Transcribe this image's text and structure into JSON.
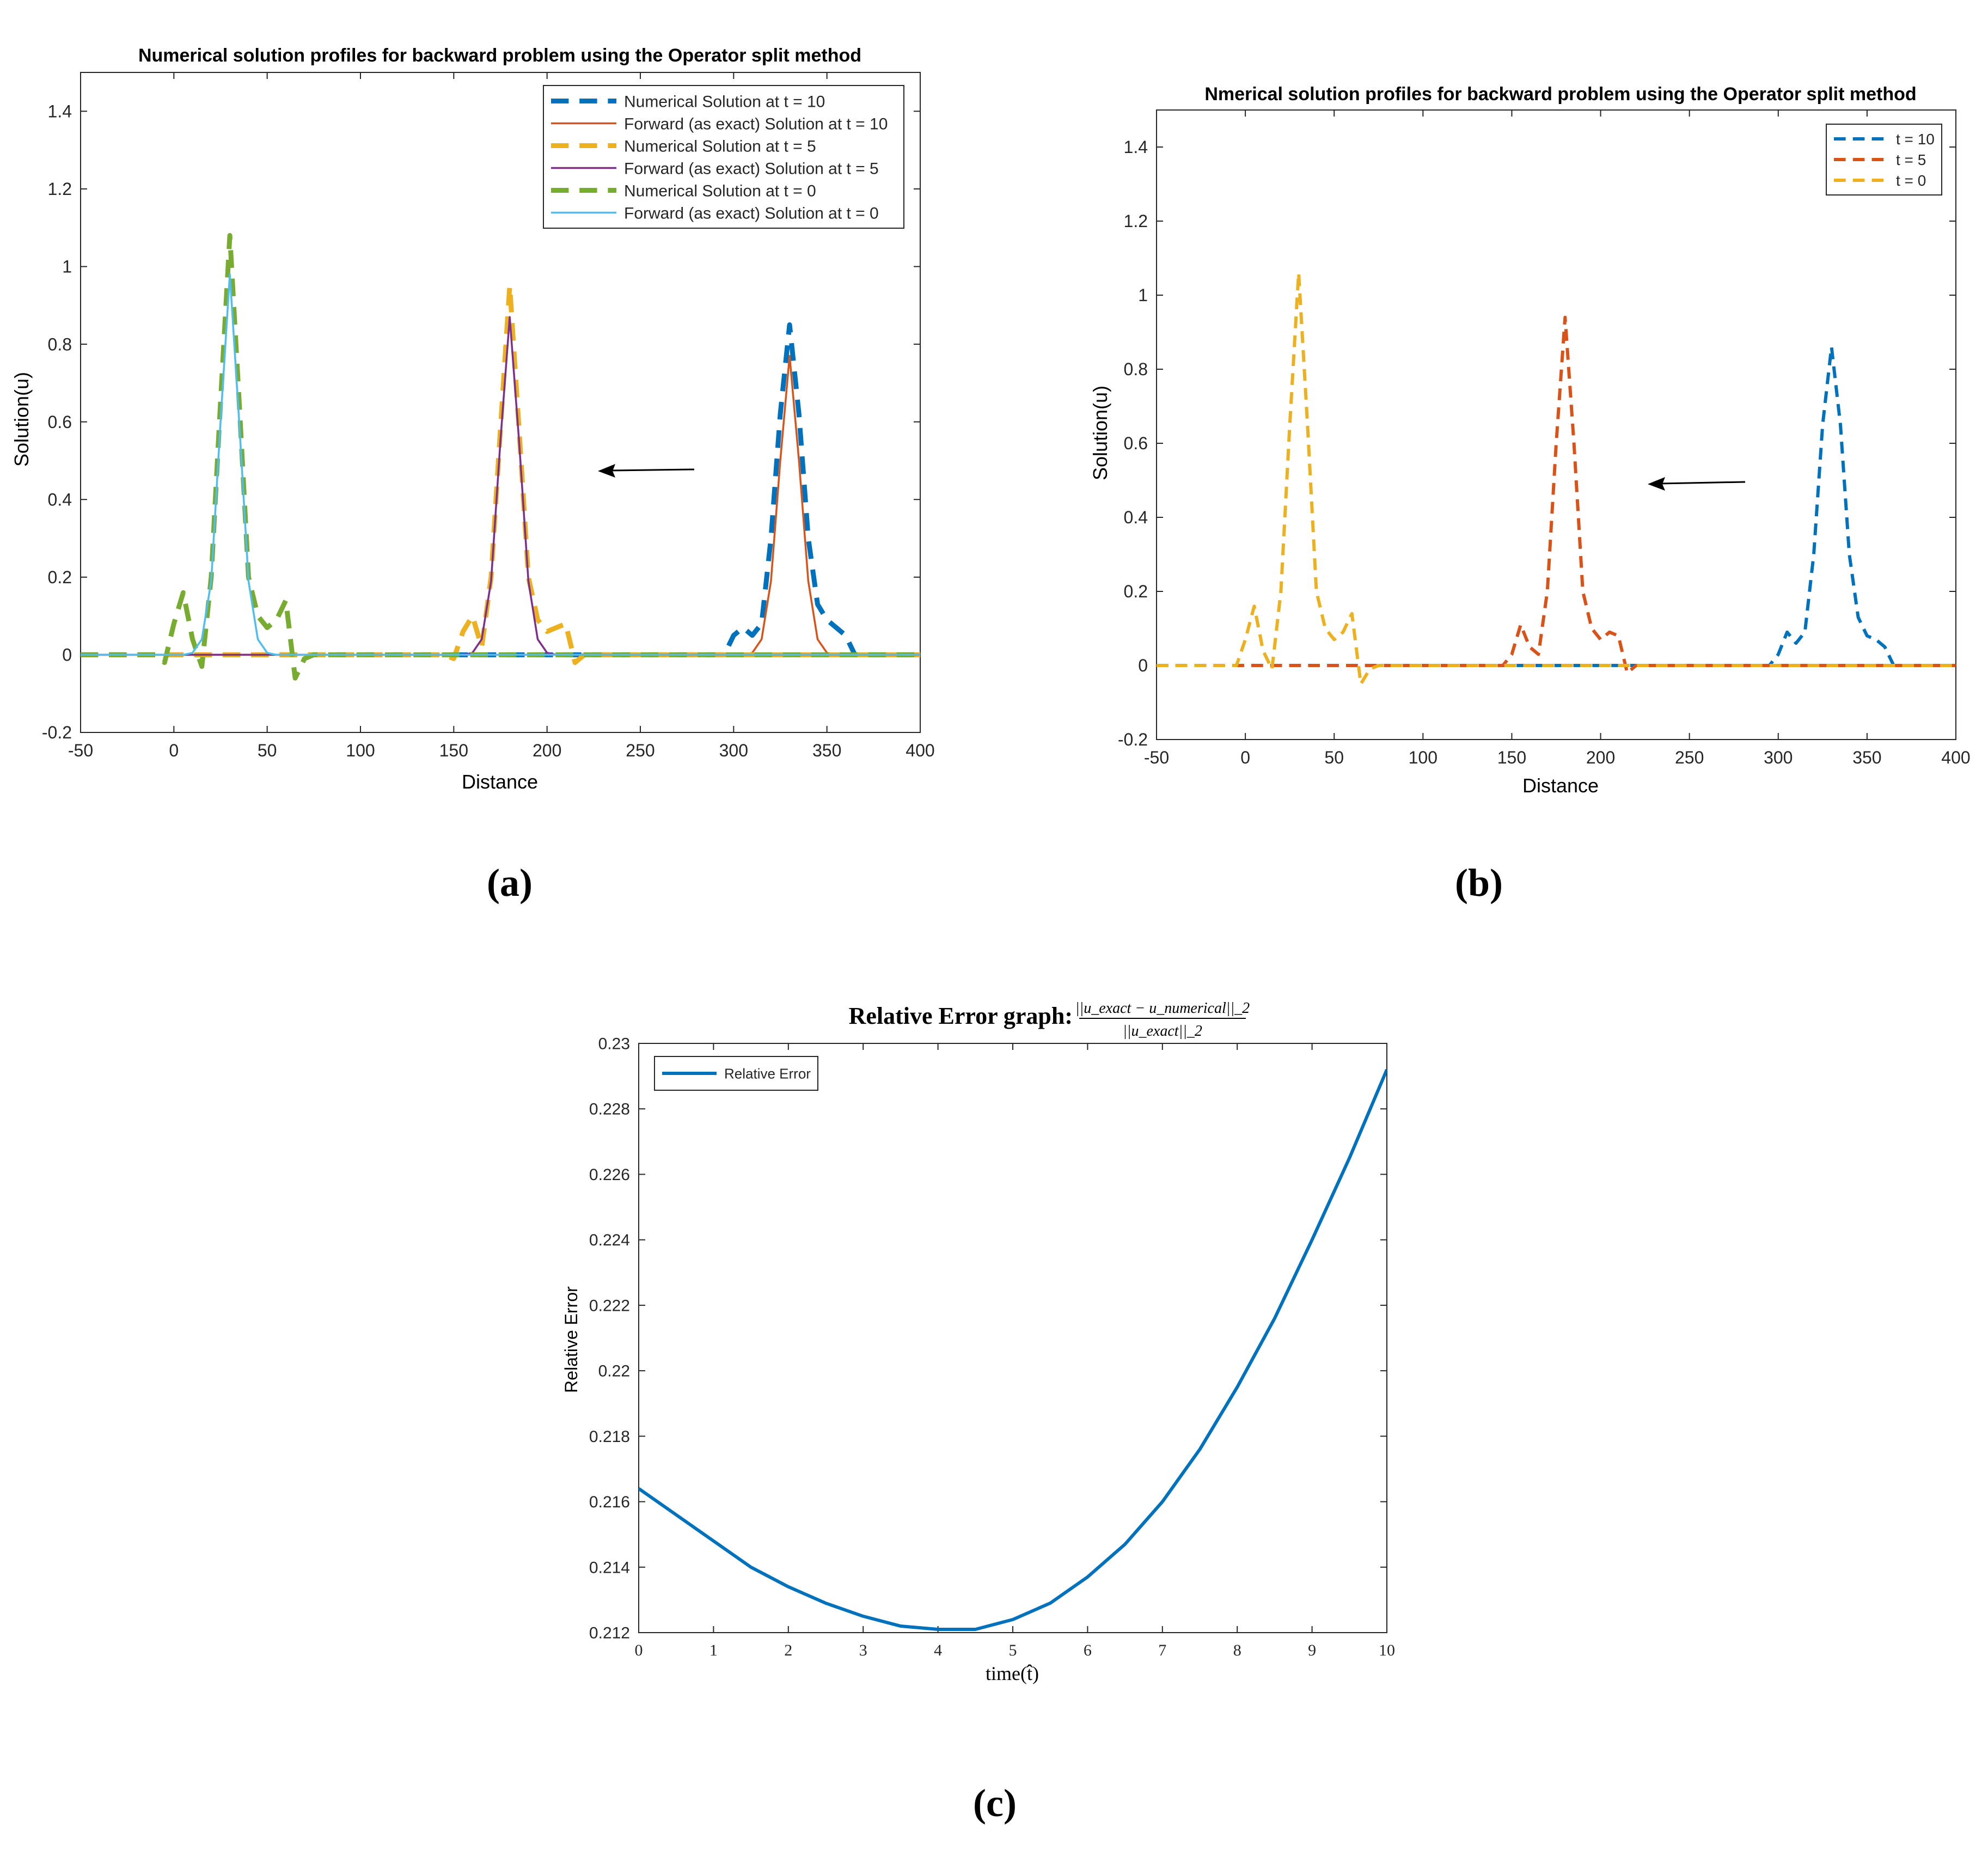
{
  "chart_data": [
    {
      "panel": "a",
      "type": "line",
      "title": "Numerical solution profiles for backward problem using the Operator split method",
      "xlabel": "Distance",
      "ylabel": "Solution(u)",
      "xlim": [
        -50,
        400
      ],
      "ylim": [
        -0.2,
        1.5
      ],
      "xticks": [
        -50,
        0,
        50,
        100,
        150,
        200,
        250,
        300,
        350,
        400
      ],
      "yticks": [
        -0.2,
        0,
        0.2,
        0.4,
        0.6,
        0.8,
        1,
        1.2,
        1.4
      ],
      "ytick_labels": [
        "-0.2",
        "0",
        "0.2",
        "0.4",
        "0.6",
        "0.8",
        "1",
        "1.2",
        "1.4"
      ],
      "xtick_labels": [
        "-50",
        "0",
        "50",
        "100",
        "150",
        "200",
        "250",
        "300",
        "350",
        "400"
      ],
      "legend_position": "top-right",
      "annotation": "left-pointing arrow",
      "series": [
        {
          "name": "Numerical Solution at t = 10",
          "color": "#0072BD",
          "style": "dashed",
          "width": "thick",
          "x": [
            -50,
            295,
            300,
            305,
            310,
            315,
            320,
            325,
            330,
            335,
            340,
            345,
            350,
            355,
            360,
            365,
            400
          ],
          "y": [
            0,
            0,
            0.05,
            0.07,
            0.05,
            0.08,
            0.3,
            0.62,
            0.85,
            0.62,
            0.3,
            0.13,
            0.09,
            0.07,
            0.05,
            0,
            0
          ]
        },
        {
          "name": "Forward (as exact) Solution at t = 10",
          "color": "#D95319",
          "style": "solid",
          "width": "thin",
          "x": [
            -50,
            305,
            310,
            315,
            320,
            325,
            330,
            335,
            340,
            345,
            350,
            355,
            400
          ],
          "y": [
            0,
            0,
            0.005,
            0.04,
            0.19,
            0.5,
            0.77,
            0.5,
            0.19,
            0.04,
            0.005,
            0,
            0
          ]
        },
        {
          "name": "Numerical Solution at t = 5",
          "color": "#EDB120",
          "style": "dashed",
          "width": "thick",
          "x": [
            -50,
            145,
            150,
            155,
            160,
            165,
            170,
            175,
            180,
            185,
            190,
            195,
            200,
            205,
            210,
            215,
            220,
            400
          ],
          "y": [
            0,
            0,
            -0.01,
            0.06,
            0.1,
            0.02,
            0.2,
            0.58,
            0.95,
            0.58,
            0.2,
            0.09,
            0.06,
            0.07,
            0.08,
            -0.02,
            0,
            0
          ]
        },
        {
          "name": "Forward (as exact) Solution at t = 5",
          "color": "#7E2F8E",
          "style": "solid",
          "width": "thin",
          "x": [
            -50,
            155,
            160,
            165,
            170,
            175,
            180,
            185,
            190,
            195,
            200,
            205,
            400
          ],
          "y": [
            0,
            0,
            0.005,
            0.04,
            0.19,
            0.55,
            0.87,
            0.55,
            0.19,
            0.04,
            0.005,
            0,
            0
          ]
        },
        {
          "name": "Numerical Solution at t = 0",
          "color": "#77AC30",
          "style": "dashed",
          "width": "thick",
          "x": [
            -50,
            -10,
            -5,
            0,
            5,
            10,
            15,
            20,
            25,
            30,
            35,
            40,
            45,
            50,
            55,
            60,
            65,
            70,
            75,
            400
          ],
          "y": [
            0,
            0,
            -0.02,
            0.08,
            0.16,
            0.04,
            -0.03,
            0.2,
            0.65,
            1.08,
            0.65,
            0.2,
            0.1,
            0.07,
            0.09,
            0.14,
            -0.06,
            -0.01,
            0,
            0
          ]
        },
        {
          "name": "Forward (as exact) Solution at t = 0",
          "color": "#4DBEEE",
          "style": "solid",
          "width": "thin",
          "x": [
            -50,
            5,
            10,
            15,
            20,
            25,
            30,
            35,
            40,
            45,
            50,
            55,
            400
          ],
          "y": [
            0,
            0,
            0.005,
            0.04,
            0.19,
            0.6,
            0.98,
            0.6,
            0.19,
            0.04,
            0.005,
            0,
            0
          ]
        }
      ]
    },
    {
      "panel": "b",
      "type": "line",
      "title": "Nmerical solution profiles for backward problem using the Operator split method",
      "xlabel": "Distance",
      "ylabel": "Solution(u)",
      "xlim": [
        -50,
        400
      ],
      "ylim": [
        -0.2,
        1.5
      ],
      "xticks": [
        -50,
        0,
        50,
        100,
        150,
        200,
        250,
        300,
        350,
        400
      ],
      "yticks": [
        -0.2,
        0,
        0.2,
        0.4,
        0.6,
        0.8,
        1,
        1.2,
        1.4
      ],
      "ytick_labels": [
        "-0.2",
        "0",
        "0.2",
        "0.4",
        "0.6",
        "0.8",
        "1",
        "1.2",
        "1.4"
      ],
      "xtick_labels": [
        "-50",
        "0",
        "50",
        "100",
        "150",
        "200",
        "250",
        "300",
        "350",
        "400"
      ],
      "legend_position": "top-right",
      "annotation": "left-pointing arrow",
      "series": [
        {
          "name": "t = 10",
          "color": "#0072BD",
          "style": "dashed",
          "width": "medium",
          "x": [
            -50,
            295,
            300,
            305,
            310,
            315,
            320,
            325,
            330,
            335,
            340,
            345,
            350,
            355,
            360,
            365,
            400
          ],
          "y": [
            0,
            0,
            0.03,
            0.09,
            0.06,
            0.09,
            0.3,
            0.65,
            0.86,
            0.65,
            0.3,
            0.13,
            0.08,
            0.07,
            0.05,
            0,
            0
          ]
        },
        {
          "name": "t = 5",
          "color": "#D95319",
          "style": "dashed",
          "width": "medium",
          "x": [
            -50,
            145,
            150,
            155,
            160,
            165,
            170,
            175,
            180,
            185,
            190,
            195,
            200,
            205,
            210,
            215,
            220,
            400
          ],
          "y": [
            0,
            0,
            0.03,
            0.11,
            0.05,
            0.03,
            0.2,
            0.6,
            0.94,
            0.6,
            0.2,
            0.1,
            0.07,
            0.09,
            0.08,
            -0.02,
            0,
            0
          ]
        },
        {
          "name": "t = 0",
          "color": "#EDB120",
          "style": "dashed",
          "width": "medium",
          "x": [
            -50,
            -5,
            0,
            5,
            10,
            15,
            20,
            25,
            30,
            35,
            40,
            45,
            50,
            55,
            60,
            65,
            70,
            75,
            400
          ],
          "y": [
            0,
            0,
            0.07,
            0.16,
            0.04,
            -0.01,
            0.2,
            0.65,
            1.06,
            0.65,
            0.2,
            0.1,
            0.07,
            0.09,
            0.14,
            -0.05,
            -0.01,
            0,
            0
          ]
        }
      ]
    },
    {
      "panel": "c",
      "type": "line",
      "title": "Relative Error graph:",
      "title_formula_numerator": "||u_exact − u_numerical||_2",
      "title_formula_denominator": "||u_exact||_2",
      "xlabel": "time(t̂)",
      "ylabel": "Relative Error",
      "xlim": [
        0,
        10
      ],
      "ylim": [
        0.212,
        0.23
      ],
      "xticks": [
        0,
        1,
        2,
        3,
        4,
        5,
        6,
        7,
        8,
        9,
        10
      ],
      "yticks": [
        0.212,
        0.214,
        0.216,
        0.218,
        0.22,
        0.222,
        0.224,
        0.226,
        0.228,
        0.23
      ],
      "ytick_labels": [
        "0.212",
        "0.214",
        "0.216",
        "0.218",
        "0.22",
        "0.222",
        "0.224",
        "0.226",
        "0.228",
        "0.23"
      ],
      "xtick_labels": [
        "0",
        "1",
        "2",
        "3",
        "4",
        "5",
        "6",
        "7",
        "8",
        "9",
        "10"
      ],
      "legend_position": "top-left",
      "series": [
        {
          "name": "Relative Error",
          "color": "#0072BD",
          "style": "solid",
          "width": "medium",
          "x": [
            0,
            0.5,
            1,
            1.5,
            2,
            2.5,
            3,
            3.5,
            4,
            4.5,
            5,
            5.5,
            6,
            6.5,
            7,
            7.5,
            8,
            8.5,
            9,
            9.5,
            10
          ],
          "y": [
            0.2164,
            0.2156,
            0.2148,
            0.214,
            0.2134,
            0.2129,
            0.2125,
            0.2122,
            0.2121,
            0.2121,
            0.2124,
            0.2129,
            0.2137,
            0.2147,
            0.216,
            0.2176,
            0.2195,
            0.2216,
            0.224,
            0.2265,
            0.2292
          ]
        }
      ]
    }
  ],
  "panel_labels": {
    "a": "(a)",
    "b": "(b)",
    "c": "(c)"
  }
}
